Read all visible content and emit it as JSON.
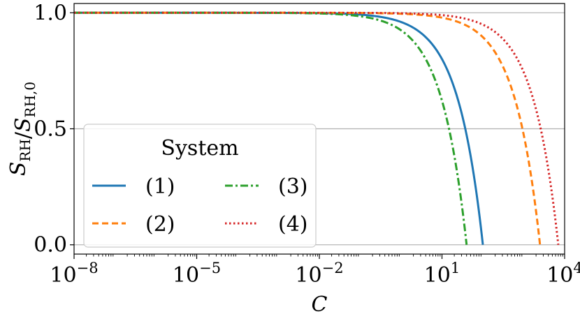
{
  "chart_data": {
    "type": "line",
    "xscale": "log",
    "xlim": [
      1e-08,
      10000
    ],
    "ylim": [
      -0.04,
      1.04
    ],
    "xlabel": "C",
    "ylabel": "S_RH / S_RH,0",
    "yticks": [
      0.0,
      0.5,
      1.0
    ],
    "ytick_labels": [
      "0.0",
      "0.5",
      "1.0"
    ],
    "xticks": [
      1e-08,
      1e-05,
      0.01,
      10,
      10000
    ],
    "xtick_labels": [
      {
        "base": "10",
        "exp": "−8"
      },
      {
        "base": "10",
        "exp": "−5"
      },
      {
        "base": "10",
        "exp": "−2"
      },
      {
        "base": "10",
        "exp": "1"
      },
      {
        "base": "10",
        "exp": "4"
      }
    ],
    "grid": "horizontal",
    "legend": {
      "title": "System",
      "placement": "lower-left",
      "columns": 2
    },
    "series": [
      {
        "name": "(1)",
        "color": "#1f77b4",
        "dash": "solid",
        "c_zero": 100
      },
      {
        "name": "(2)",
        "color": "#ff7f0e",
        "dash": "dashed",
        "c_zero": 2500
      },
      {
        "name": "(3)",
        "color": "#2ca02c",
        "dash": "dashdot",
        "c_zero": 40
      },
      {
        "name": "(4)",
        "color": "#d62728",
        "dash": "dotted",
        "c_zero": 7000
      }
    ]
  }
}
